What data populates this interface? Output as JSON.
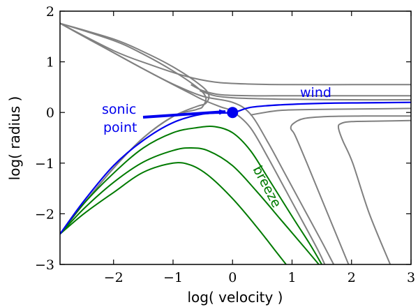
{
  "chart_data": {
    "type": "line",
    "title": "",
    "xlabel": "log( velocity )",
    "ylabel": "log( radius )",
    "xlim": [
      -2.9,
      3.0
    ],
    "ylim": [
      -3.0,
      2.0
    ],
    "x_ticks": [
      {
        "value": -2,
        "label": "−2"
      },
      {
        "value": -1,
        "label": "−1"
      },
      {
        "value": 0,
        "label": "0"
      },
      {
        "value": 1,
        "label": "1"
      },
      {
        "value": 2,
        "label": "2"
      },
      {
        "value": 3,
        "label": "3"
      }
    ],
    "y_ticks": [
      {
        "value": -3,
        "label": "−3"
      },
      {
        "value": -2,
        "label": "−2"
      },
      {
        "value": -1,
        "label": "−1"
      },
      {
        "value": 0,
        "label": "0"
      },
      {
        "value": 1,
        "label": "1"
      },
      {
        "value": 2,
        "label": "2"
      }
    ],
    "grid": false,
    "colors": {
      "gray": "#808080",
      "green": "#007a00",
      "blue": "#0000ee"
    },
    "series": [
      {
        "color": "gray",
        "points": [
          [
            -2.9,
            1.76
          ],
          [
            -2.5,
            1.5
          ],
          [
            -2.0,
            1.18
          ],
          [
            -1.5,
            0.86
          ],
          [
            -1.0,
            0.55
          ],
          [
            -0.7,
            0.37
          ],
          [
            -0.5,
            0.25
          ],
          [
            -0.2,
            0.11
          ],
          [
            0.0,
            0.02
          ],
          [
            0.3,
            -0.3
          ],
          [
            0.6,
            -0.9
          ],
          [
            0.9,
            -1.55
          ],
          [
            1.2,
            -2.2
          ],
          [
            1.45,
            -2.75
          ],
          [
            1.55,
            -3.0
          ]
        ]
      },
      {
        "color": "gray",
        "points": [
          [
            -2.9,
            1.76
          ],
          [
            -2.5,
            1.5
          ],
          [
            -2.0,
            1.18
          ],
          [
            -1.5,
            0.86
          ],
          [
            -1.0,
            0.56
          ],
          [
            -0.5,
            0.32
          ],
          [
            0.0,
            0.2
          ],
          [
            0.3,
            -0.03
          ],
          [
            0.6,
            -0.6
          ],
          [
            0.9,
            -1.25
          ],
          [
            1.2,
            -1.9
          ],
          [
            1.5,
            -2.55
          ],
          [
            1.7,
            -3.0
          ]
        ]
      },
      {
        "color": "gray",
        "points": [
          [
            -2.9,
            -2.4
          ],
          [
            -2.5,
            -1.8
          ],
          [
            -2.0,
            -1.1
          ],
          [
            -1.5,
            -0.5
          ],
          [
            -1.0,
            -0.08
          ],
          [
            -0.6,
            0.12
          ],
          [
            -0.45,
            0.18
          ],
          [
            -0.4,
            0.35
          ],
          [
            -0.55,
            0.55
          ],
          [
            -1.0,
            0.9
          ],
          [
            -1.5,
            1.2
          ],
          [
            -2.0,
            1.45
          ],
          [
            -2.9,
            1.76
          ]
        ]
      },
      {
        "color": "gray",
        "points": [
          [
            -2.9,
            -2.4
          ],
          [
            -2.5,
            -1.8
          ],
          [
            -2.0,
            -1.1
          ],
          [
            -1.5,
            -0.5
          ],
          [
            -1.0,
            -0.08
          ],
          [
            -0.6,
            0.06
          ],
          [
            -0.5,
            0.12
          ],
          [
            -0.45,
            0.3
          ],
          [
            -0.6,
            0.5
          ],
          [
            -1.0,
            0.82
          ],
          [
            -1.5,
            1.15
          ],
          [
            -2.0,
            1.42
          ],
          [
            -2.9,
            1.76
          ]
        ]
      },
      {
        "color": "gray",
        "points": [
          [
            -2.9,
            1.76
          ],
          [
            -2.0,
            1.22
          ],
          [
            -1.4,
            0.95
          ],
          [
            -0.8,
            0.72
          ],
          [
            -0.3,
            0.6
          ],
          [
            0.3,
            0.56
          ],
          [
            1.0,
            0.55
          ],
          [
            2.0,
            0.55
          ],
          [
            3.0,
            0.55
          ]
        ]
      },
      {
        "color": "gray",
        "points": [
          [
            -0.7,
            0.55
          ],
          [
            -0.5,
            0.43
          ],
          [
            -0.2,
            0.35
          ],
          [
            0.3,
            0.33
          ],
          [
            1.0,
            0.33
          ],
          [
            2.0,
            0.33
          ],
          [
            3.0,
            0.33
          ]
        ]
      },
      {
        "color": "gray",
        "points": [
          [
            -0.55,
            0.43
          ],
          [
            -0.3,
            0.33
          ],
          [
            0.0,
            0.29
          ],
          [
            0.5,
            0.27
          ],
          [
            1.0,
            0.26
          ],
          [
            2.0,
            0.25
          ],
          [
            3.0,
            0.25
          ]
        ]
      },
      {
        "color": "gray",
        "points": [
          [
            0.3,
            -0.05
          ],
          [
            0.8,
            0.04
          ],
          [
            1.5,
            0.06
          ],
          [
            2.2,
            0.07
          ],
          [
            3.0,
            0.08
          ]
        ]
      },
      {
        "color": "gray",
        "points": [
          [
            1.95,
            -3.0
          ],
          [
            1.6,
            -2.0
          ],
          [
            1.25,
            -1.0
          ],
          [
            1.05,
            -0.45
          ],
          [
            0.98,
            -0.32
          ],
          [
            1.02,
            -0.22
          ],
          [
            1.2,
            -0.12
          ],
          [
            1.6,
            -0.08
          ],
          [
            2.2,
            -0.07
          ],
          [
            3.0,
            -0.07
          ]
        ]
      },
      {
        "color": "gray",
        "points": [
          [
            2.65,
            -3.0
          ],
          [
            2.3,
            -2.0
          ],
          [
            2.02,
            -1.0
          ],
          [
            1.85,
            -0.55
          ],
          [
            1.78,
            -0.3
          ],
          [
            1.82,
            -0.22
          ],
          [
            2.0,
            -0.18
          ],
          [
            2.5,
            -0.17
          ],
          [
            3.0,
            -0.16
          ]
        ]
      },
      {
        "color": "green",
        "points": [
          [
            -2.9,
            -2.4
          ],
          [
            -2.5,
            -1.8
          ],
          [
            -2.0,
            -1.2
          ],
          [
            -1.5,
            -0.7
          ],
          [
            -1.0,
            -0.4
          ],
          [
            -0.6,
            -0.3
          ],
          [
            -0.3,
            -0.28
          ],
          [
            0.0,
            -0.4
          ],
          [
            0.3,
            -0.75
          ],
          [
            0.6,
            -1.3
          ],
          [
            1.0,
            -2.05
          ],
          [
            1.3,
            -2.6
          ],
          [
            1.5,
            -3.0
          ]
        ]
      },
      {
        "color": "green",
        "points": [
          [
            -2.9,
            -2.4
          ],
          [
            -2.5,
            -1.9
          ],
          [
            -2.0,
            -1.38
          ],
          [
            -1.5,
            -0.98
          ],
          [
            -1.0,
            -0.75
          ],
          [
            -0.7,
            -0.7
          ],
          [
            -0.4,
            -0.76
          ],
          [
            0.0,
            -1.05
          ],
          [
            0.4,
            -1.55
          ],
          [
            0.8,
            -2.1
          ],
          [
            1.2,
            -2.65
          ],
          [
            1.45,
            -3.0
          ]
        ]
      },
      {
        "color": "green",
        "points": [
          [
            -2.9,
            -2.4
          ],
          [
            -2.5,
            -2.0
          ],
          [
            -2.0,
            -1.58
          ],
          [
            -1.5,
            -1.18
          ],
          [
            -1.0,
            -1.0
          ],
          [
            -0.7,
            -1.04
          ],
          [
            -0.4,
            -1.25
          ],
          [
            0.0,
            -1.7
          ],
          [
            0.4,
            -2.25
          ],
          [
            0.7,
            -2.7
          ],
          [
            0.9,
            -3.0
          ]
        ]
      },
      {
        "color": "blue",
        "points": [
          [
            -2.9,
            -2.4
          ],
          [
            -2.5,
            -1.75
          ],
          [
            -2.0,
            -1.05
          ],
          [
            -1.5,
            -0.55
          ],
          [
            -1.0,
            -0.2
          ],
          [
            -0.5,
            -0.03
          ],
          [
            0.0,
            0.0
          ],
          [
            0.3,
            0.1
          ],
          [
            0.8,
            0.15
          ],
          [
            1.5,
            0.18
          ],
          [
            2.2,
            0.19
          ],
          [
            3.0,
            0.2
          ]
        ]
      }
    ],
    "sonic_point": {
      "x": 0.0,
      "y": 0.0,
      "color": "blue"
    },
    "annotations": {
      "sonic_line1": "sonic",
      "sonic_line2": "point",
      "wind": "wind",
      "breeze": "breeze"
    }
  }
}
